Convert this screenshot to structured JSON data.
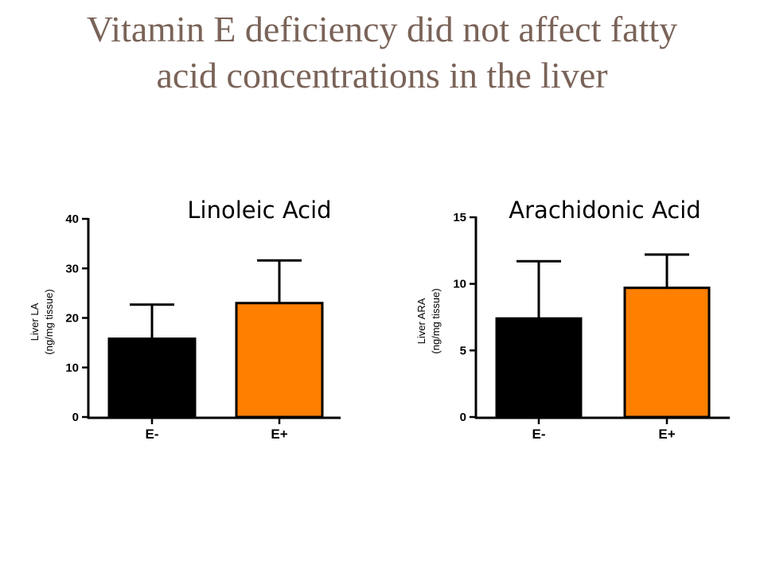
{
  "slide": {
    "title_line1": "Vitamin E deficiency did not affect fatty",
    "title_line2": "acid concentrations in the liver"
  },
  "chart_data": [
    {
      "type": "bar",
      "title": "Linoleic Acid",
      "ylabel_line1": "Liver LA",
      "ylabel_line2": "(ng/mg tissue)",
      "categories": [
        "E-",
        "E+"
      ],
      "values": [
        15.8,
        23.0
      ],
      "errors": [
        6.9,
        8.6
      ],
      "bar_colors": [
        "#000000",
        "#ff7f00"
      ],
      "ylim": [
        0,
        40
      ],
      "yticks": [
        0,
        10,
        20,
        30,
        40
      ],
      "grid": false
    },
    {
      "type": "bar",
      "title": "Arachidonic Acid",
      "ylabel_line1": "Liver ARA",
      "ylabel_line2": "(ng/mg tissue)",
      "categories": [
        "E-",
        "E+"
      ],
      "values": [
        7.4,
        9.7
      ],
      "errors": [
        4.3,
        2.5
      ],
      "bar_colors": [
        "#000000",
        "#ff7f00"
      ],
      "ylim": [
        0,
        15
      ],
      "yticks": [
        0,
        5,
        10,
        15
      ],
      "grid": false
    }
  ]
}
